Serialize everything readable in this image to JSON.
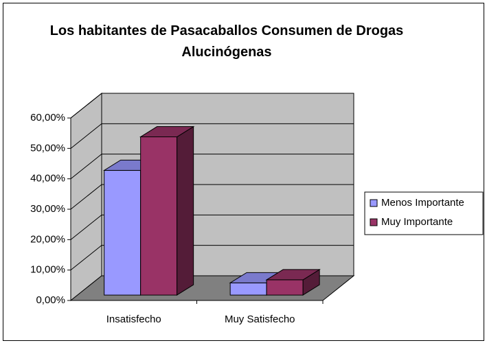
{
  "chart_data": {
    "type": "bar3d",
    "title": "Los habitantes de Pasacaballos Consumen de Drogas Alucinógenas",
    "categories": [
      "Insatisfecho",
      "Muy Satisfecho"
    ],
    "series": [
      {
        "name": "Menos Importante",
        "color": "#9999ff",
        "values": [
          41,
          4
        ]
      },
      {
        "name": "Muy Importante",
        "color": "#993366",
        "values": [
          52,
          5
        ]
      }
    ],
    "ylim": [
      0,
      60
    ],
    "yticks": [
      {
        "value": 0,
        "label": "0,00%"
      },
      {
        "value": 10,
        "label": "10,00%"
      },
      {
        "value": 20,
        "label": "20,00%"
      },
      {
        "value": 30,
        "label": "30,00%"
      },
      {
        "value": 40,
        "label": "40,00%"
      },
      {
        "value": 50,
        "label": "50,00%"
      },
      {
        "value": 60,
        "label": "60,00%"
      }
    ],
    "grid": true,
    "legend": "right"
  }
}
